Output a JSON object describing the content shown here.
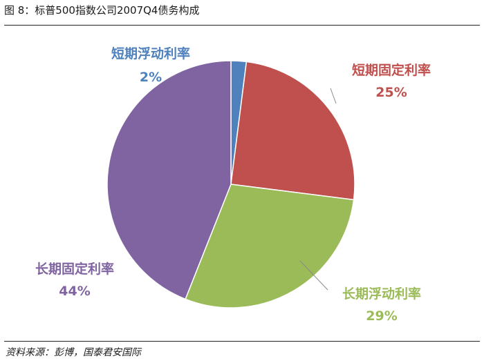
{
  "figure_title": "图 8：标普500指数公司2007Q4债务构成",
  "source": "资料来源：彭博，国泰君安国际",
  "chart_data": {
    "type": "pie",
    "categories": [
      "短期浮动利率",
      "短期固定利率",
      "长期浮动利率",
      "长期固定利率"
    ],
    "values": [
      2,
      25,
      29,
      44
    ],
    "value_labels": [
      "2%",
      "25%",
      "29%",
      "44%"
    ],
    "colors": [
      "#4f81bd",
      "#c0504d",
      "#9bbb59",
      "#8064a2"
    ],
    "title": "",
    "legend": "none",
    "start_angle": "12 o'clock",
    "direction": "clockwise"
  }
}
